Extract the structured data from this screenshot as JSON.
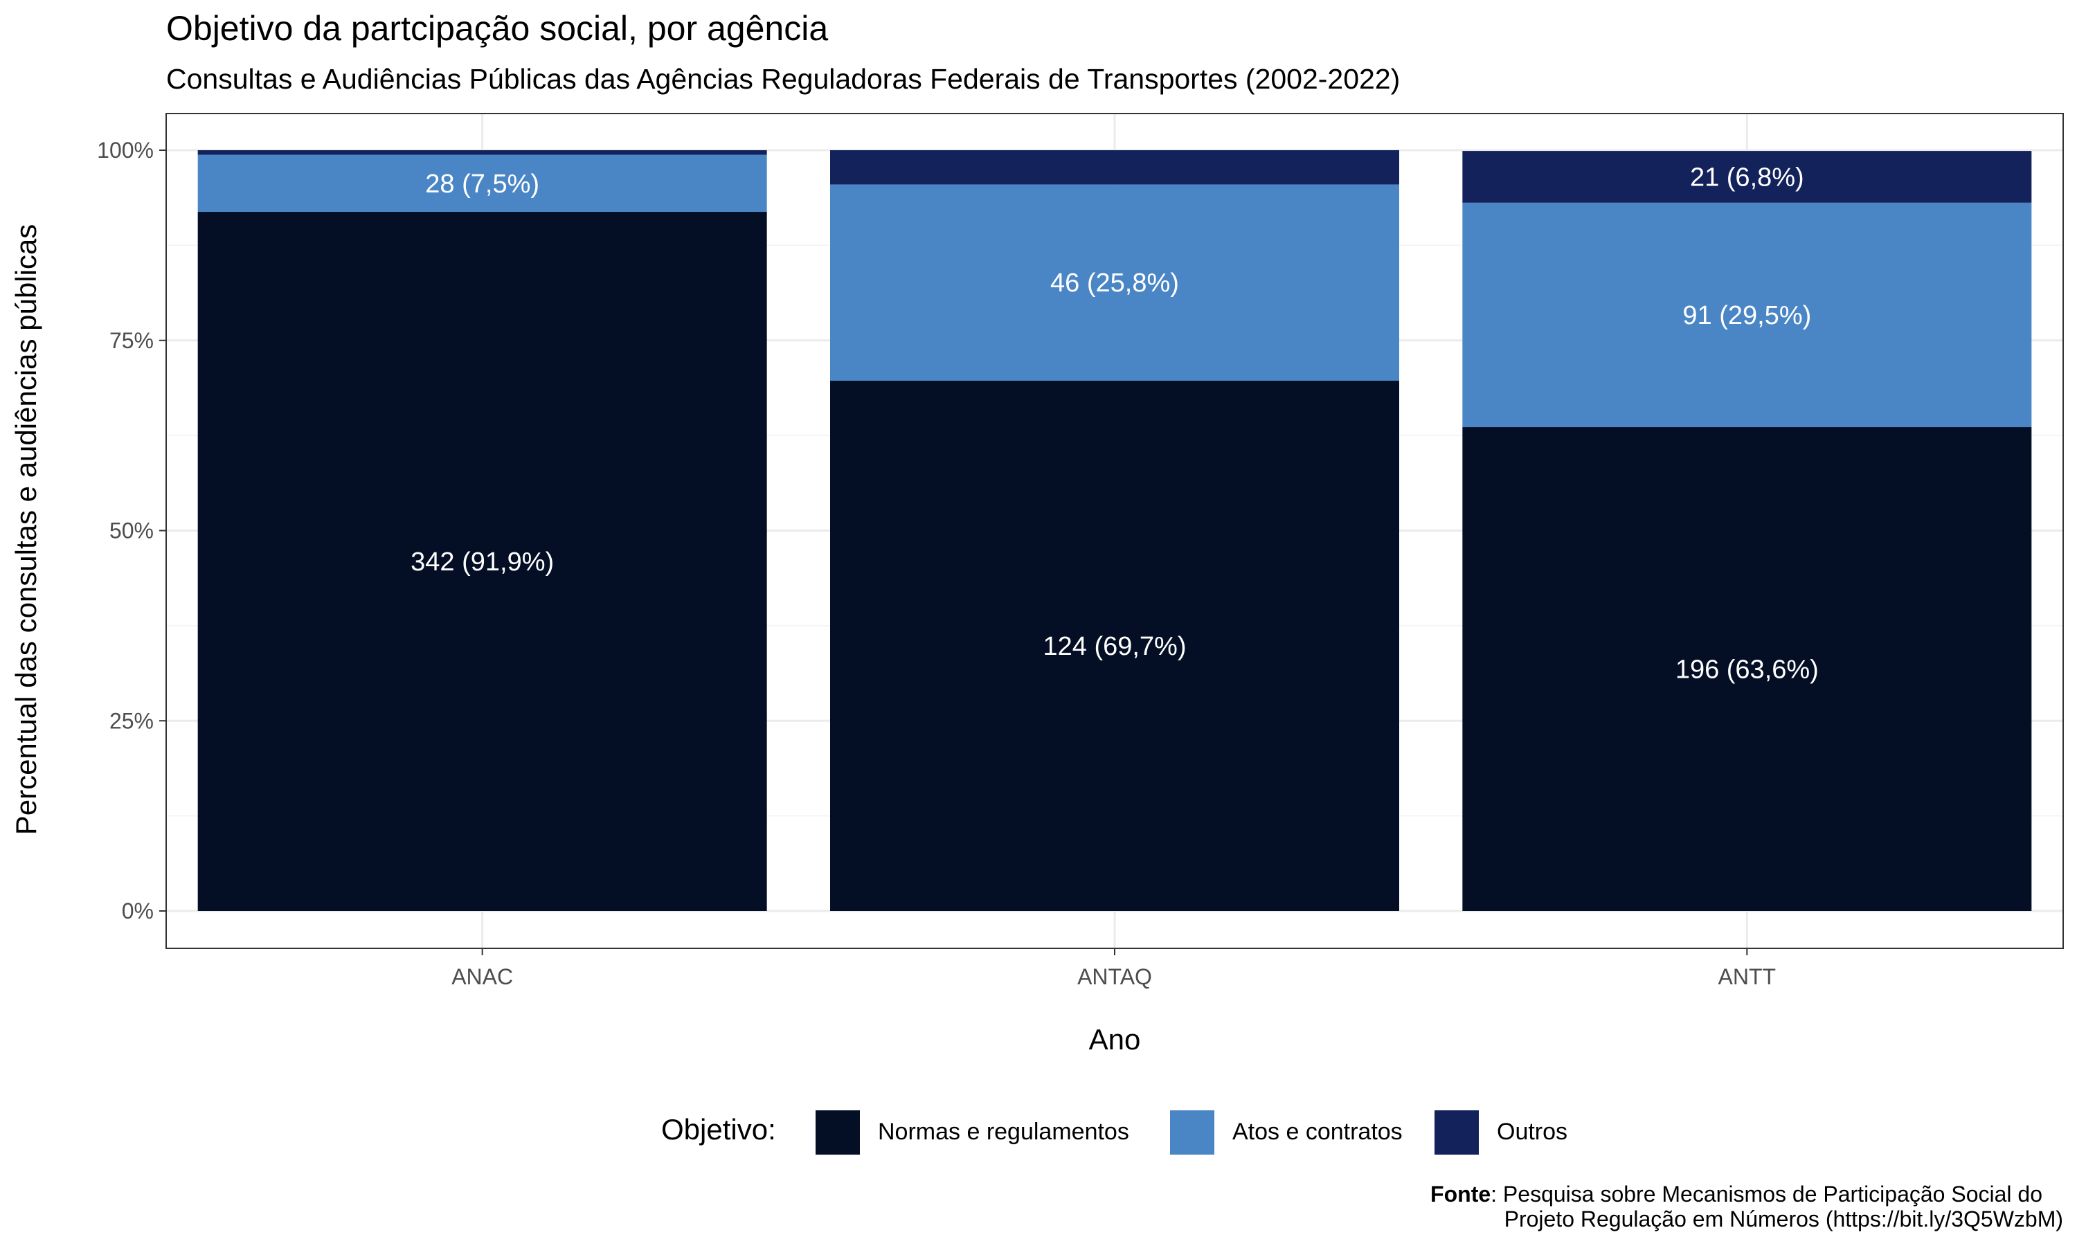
{
  "chart_data": {
    "type": "bar",
    "stacked": true,
    "title": "Objetivo da partcipação social, por agência",
    "subtitle": "Consultas e Audiências Públicas das Agências Reguladoras Federais de Transportes (2002-2022)",
    "xlabel": "Ano",
    "ylabel": "Percentual das consultas e audiências públicas",
    "ylim": [
      0,
      1
    ],
    "y_ticks": [
      {
        "value": 0,
        "label": "0%"
      },
      {
        "value": 0.25,
        "label": "25%"
      },
      {
        "value": 0.5,
        "label": "50%"
      },
      {
        "value": 0.75,
        "label": "75%"
      },
      {
        "value": 1,
        "label": "100%"
      }
    ],
    "categories": [
      "ANAC",
      "ANTAQ",
      "ANTT"
    ],
    "series": [
      {
        "name": "Normas e regulamentos",
        "color": "#040f25",
        "values": [
          0.919,
          0.697,
          0.636
        ],
        "labels": [
          "342 (91,9%)",
          "124 (69,7%)",
          "196 (63,6%)"
        ]
      },
      {
        "name": "Atos e contratos",
        "color": "#4a86c5",
        "values": [
          0.075,
          0.258,
          0.295
        ],
        "labels": [
          "28 (7,5%)",
          "46 (25,8%)",
          "91 (29,5%)"
        ]
      },
      {
        "name": "Outros",
        "color": "#13225a",
        "values": [
          0.006,
          0.045,
          0.068
        ],
        "labels": [
          "",
          "",
          "21 (6,8%)"
        ]
      }
    ],
    "grid": true,
    "legend": {
      "title": "Objetivo:",
      "position": "bottom"
    },
    "caption": {
      "bold": "Fonte",
      "line1": ": Pesquisa sobre Mecanismos de Participação Social do",
      "line2": "Projeto Regulação em Números (https://bit.ly/3Q5WzbM)"
    }
  }
}
